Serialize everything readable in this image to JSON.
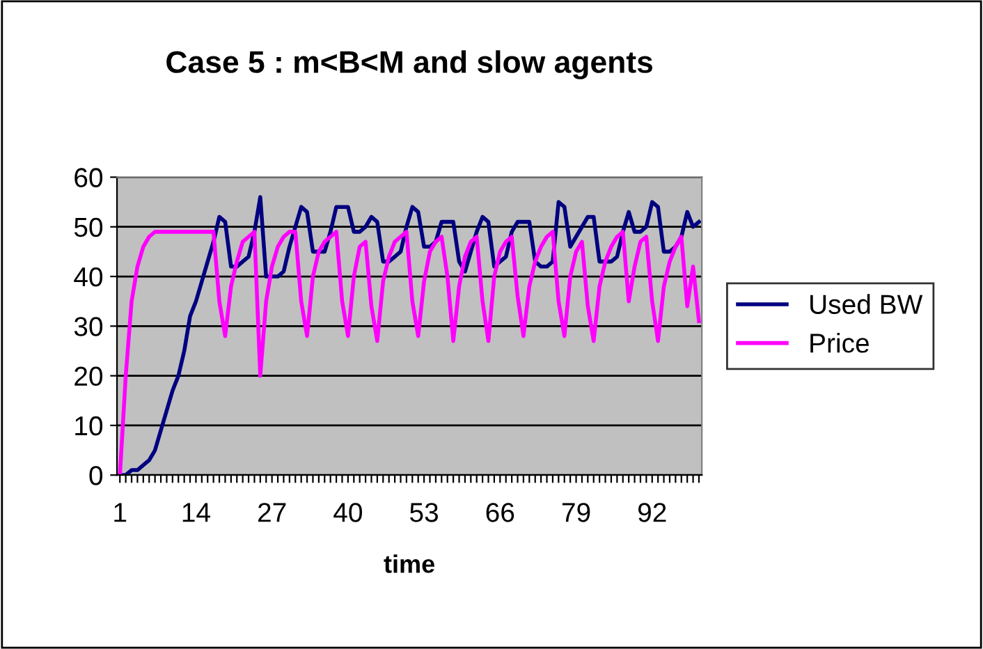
{
  "chart_data": {
    "type": "line",
    "title": "Case 5 : m<B<M and slow agents",
    "xlabel": "time",
    "categories": [
      "1",
      null,
      null,
      null,
      null,
      null,
      null,
      null,
      null,
      null,
      null,
      null,
      null,
      "14",
      null,
      null,
      null,
      null,
      null,
      null,
      null,
      null,
      null,
      null,
      null,
      null,
      "27",
      null,
      null,
      null,
      null,
      null,
      null,
      null,
      null,
      null,
      null,
      null,
      null,
      "40",
      null,
      null,
      null,
      null,
      null,
      null,
      null,
      null,
      null,
      null,
      null,
      null,
      "53",
      null,
      null,
      null,
      null,
      null,
      null,
      null,
      null,
      null,
      null,
      null,
      null,
      "66",
      null,
      null,
      null,
      null,
      null,
      null,
      null,
      null,
      null,
      null,
      null,
      null,
      "79",
      null,
      null,
      null,
      null,
      null,
      null,
      null,
      null,
      null,
      null,
      null,
      null,
      "92",
      null,
      null,
      null,
      null,
      null,
      null,
      null,
      null
    ],
    "series": [
      {
        "name": "Used BW",
        "color": "#000080",
        "values": [
          0,
          0,
          1,
          1,
          2,
          3,
          5,
          9,
          13,
          17,
          20,
          25,
          32,
          35,
          39,
          43,
          47,
          52,
          51,
          42,
          42,
          43,
          44,
          49,
          56,
          40,
          40,
          40,
          41,
          46,
          50,
          54,
          53,
          45,
          45,
          45,
          49,
          54,
          54,
          54,
          49,
          49,
          50,
          52,
          51,
          43,
          43,
          44,
          45,
          50,
          54,
          53,
          46,
          46,
          47,
          51,
          51,
          51,
          43,
          41,
          45,
          49,
          52,
          51,
          42,
          43,
          44,
          49,
          51,
          51,
          51,
          43,
          42,
          42,
          43,
          55,
          54,
          46,
          48,
          50,
          52,
          52,
          43,
          43,
          43,
          44,
          49,
          53,
          49,
          49,
          50,
          55,
          54,
          45,
          45,
          46,
          48,
          53,
          50,
          51
        ]
      },
      {
        "name": "Price",
        "color": "#ff00ff",
        "values": [
          0,
          20,
          35,
          42,
          46,
          48,
          49,
          49,
          49,
          49,
          49,
          49,
          49,
          49,
          49,
          49,
          49,
          35,
          28,
          38,
          43,
          47,
          48,
          49,
          20,
          35,
          42,
          46,
          48,
          49,
          49,
          35,
          28,
          40,
          45,
          47,
          48,
          49,
          35,
          28,
          40,
          46,
          47,
          34,
          27,
          39,
          44,
          47,
          48,
          49,
          35,
          28,
          39,
          45,
          47,
          48,
          40,
          27,
          38,
          44,
          47,
          48,
          35,
          27,
          40,
          45,
          47,
          48,
          36,
          28,
          38,
          43,
          46,
          48,
          49,
          35,
          28,
          40,
          45,
          47,
          34,
          27,
          38,
          43,
          46,
          48,
          49,
          35,
          42,
          47,
          48,
          35,
          27,
          38,
          43,
          46,
          48,
          34,
          42,
          31
        ]
      }
    ],
    "ylim": [
      0,
      60
    ],
    "yticks": [
      0,
      10,
      20,
      30,
      40,
      50,
      60
    ],
    "grid": "y",
    "legend": "right",
    "marker": "none",
    "line_style": "solid"
  }
}
